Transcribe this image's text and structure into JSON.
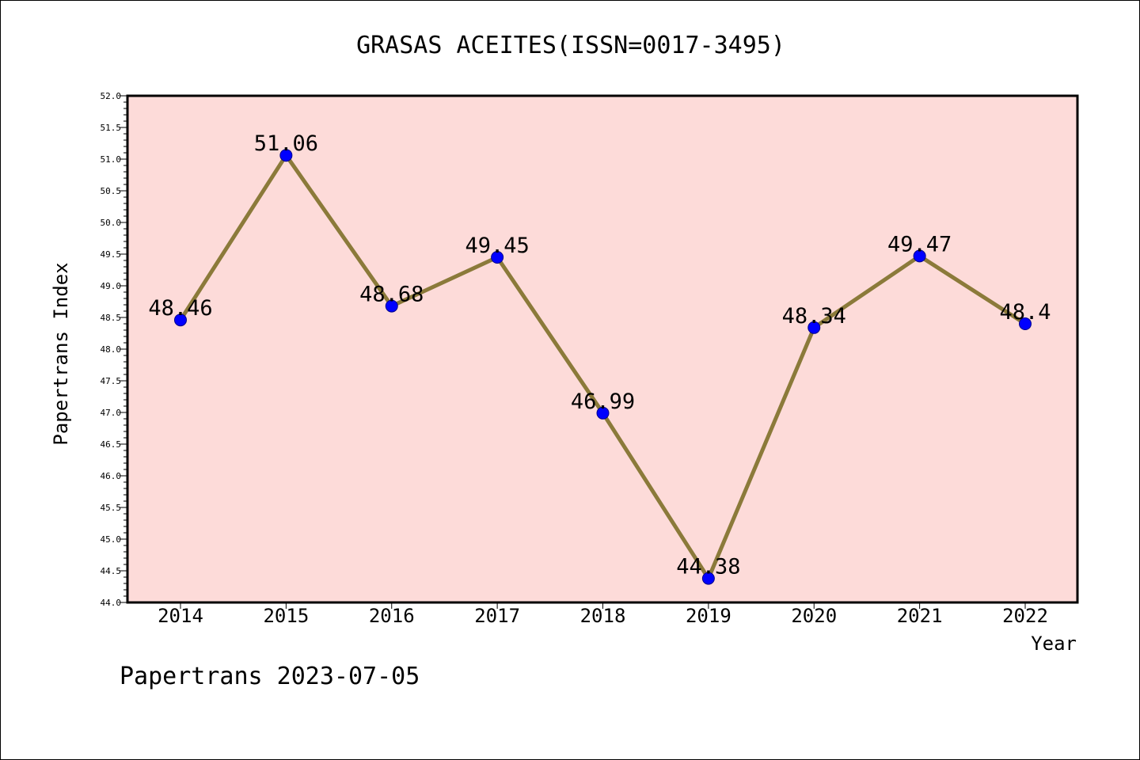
{
  "chart_data": {
    "type": "line",
    "title": "GRASAS ACEITES(ISSN=0017-3495)",
    "xlabel": "Year",
    "ylabel": "Papertrans Index",
    "categories": [
      "2014",
      "2015",
      "2016",
      "2017",
      "2018",
      "2019",
      "2020",
      "2021",
      "2022"
    ],
    "series": [
      {
        "values": [
          48.46,
          51.06,
          48.68,
          49.45,
          46.99,
          44.38,
          48.34,
          49.47,
          48.4
        ],
        "labels": [
          "48.46",
          "51.06",
          "48.68",
          "49.45",
          "46.99",
          "44.38",
          "48.34",
          "49.47",
          "48.4"
        ],
        "line_color": "#8b7a3a",
        "marker_color": "#0000ff"
      }
    ],
    "ylim": [
      44.0,
      52.0
    ],
    "y_ticks": [
      "44.0",
      "44.5",
      "45.0",
      "45.5",
      "46.0",
      "46.5",
      "47.0",
      "47.5",
      "48.0",
      "48.5",
      "49.0",
      "49.5",
      "50.0",
      "50.5",
      "51.0",
      "51.5",
      "52.0"
    ],
    "grid": false,
    "plot_background": "#fddbd9",
    "footer": "Papertrans 2023-07-05"
  }
}
